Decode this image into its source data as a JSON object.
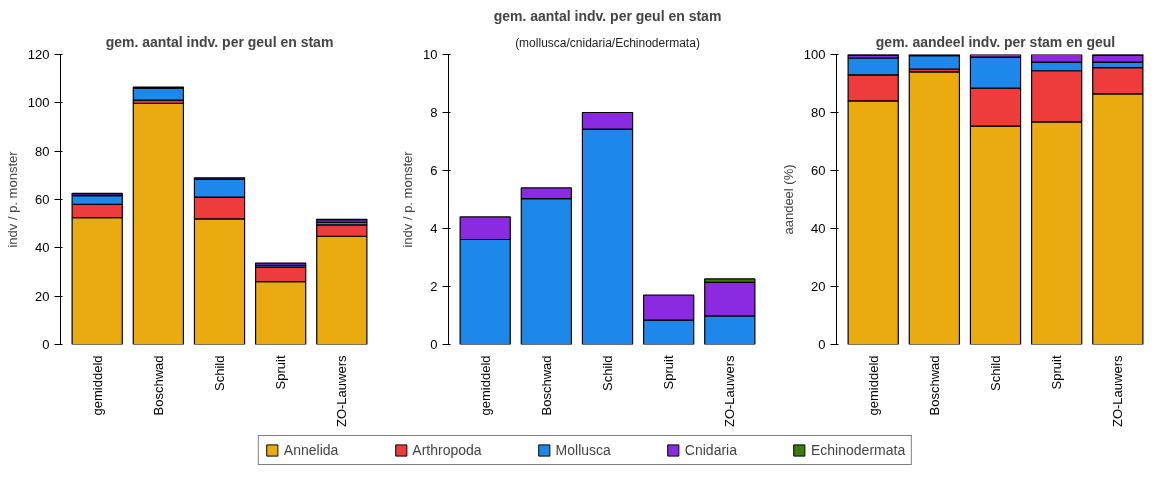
{
  "chart_data": [
    {
      "type": "bar",
      "stacked": true,
      "title": "gem. aantal indv. per geul en stam",
      "ylabel": "indv / p. monster",
      "categories": [
        "gemiddeld",
        "Boschwad",
        "Schild",
        "Spruit",
        "ZO-Lauwers"
      ],
      "ylim": [
        0,
        120
      ],
      "yticks": [
        0,
        20,
        40,
        60,
        80,
        100,
        120
      ],
      "grid": false,
      "legend": "bottom",
      "series": [
        {
          "name": "Annelida",
          "color": "#eaab10",
          "values": [
            52.5,
            99.8,
            52,
            26,
            44.8
          ]
        },
        {
          "name": "Arthropoda",
          "color": "#ee3b3b",
          "values": [
            5.5,
            1.3,
            9,
            6,
            4.7
          ]
        },
        {
          "name": "Mollusca",
          "color": "#1e88ea",
          "values": [
            3.6,
            5.0,
            7.4,
            0.8,
            1.0
          ]
        },
        {
          "name": "Cnidaria",
          "color": "#8a2be2",
          "values": [
            0.8,
            0.4,
            0.6,
            0.9,
            1.2
          ]
        },
        {
          "name": "Echinodermata",
          "color": "#3a7d0a",
          "values": [
            0.1,
            null,
            null,
            null,
            0.1
          ]
        }
      ]
    },
    {
      "type": "bar",
      "stacked": true,
      "title": "gem. aantal indv. per geul en stam",
      "subtitle": "(mollusca/cnidaria/Echinodermata)",
      "ylabel": "indv / p. monster",
      "categories": [
        "gemiddeld",
        "Boschwad",
        "Schild",
        "Spruit",
        "ZO-Lauwers"
      ],
      "ylim": [
        0,
        10
      ],
      "yticks": [
        0,
        2,
        4,
        6,
        8,
        10
      ],
      "grid": false,
      "series": [
        {
          "color": "#1e88ea",
          "values": [
            3.62,
            5.03,
            7.43,
            0.84,
            0.99
          ]
        },
        {
          "color": "#8a2be2",
          "values": [
            0.78,
            0.37,
            0.57,
            0.86,
            1.15
          ]
        },
        {
          "color": "#3a7d0a",
          "values": [
            null,
            null,
            null,
            null,
            0.12
          ]
        }
      ]
    },
    {
      "type": "bar",
      "stacked": true,
      "title": "gem. aandeel indv. per stam en geul",
      "ylabel": "aandeel (%)",
      "categories": [
        "gemiddeld",
        "Boschwad",
        "Schild",
        "Spruit",
        "ZO-Lauwers"
      ],
      "ylim": [
        0,
        100
      ],
      "yticks": [
        0,
        20,
        40,
        60,
        80,
        100
      ],
      "grid": false,
      "series": [
        {
          "color": "#eaab10",
          "values": [
            84,
            94,
            75.3,
            76.8,
            86.4
          ]
        },
        {
          "color": "#ee3b3b",
          "values": [
            9,
            1,
            13.1,
            17.6,
            9.1
          ]
        },
        {
          "color": "#1e88ea",
          "values": [
            5.8,
            4.6,
            10.7,
            3,
            1.9
          ]
        },
        {
          "color": "#8a2be2",
          "values": [
            1.0,
            0.4,
            0.9,
            2.6,
            2.4
          ]
        },
        {
          "color": "#3a7d0a",
          "values": [
            0.2,
            null,
            null,
            null,
            0.2
          ]
        }
      ]
    }
  ]
}
